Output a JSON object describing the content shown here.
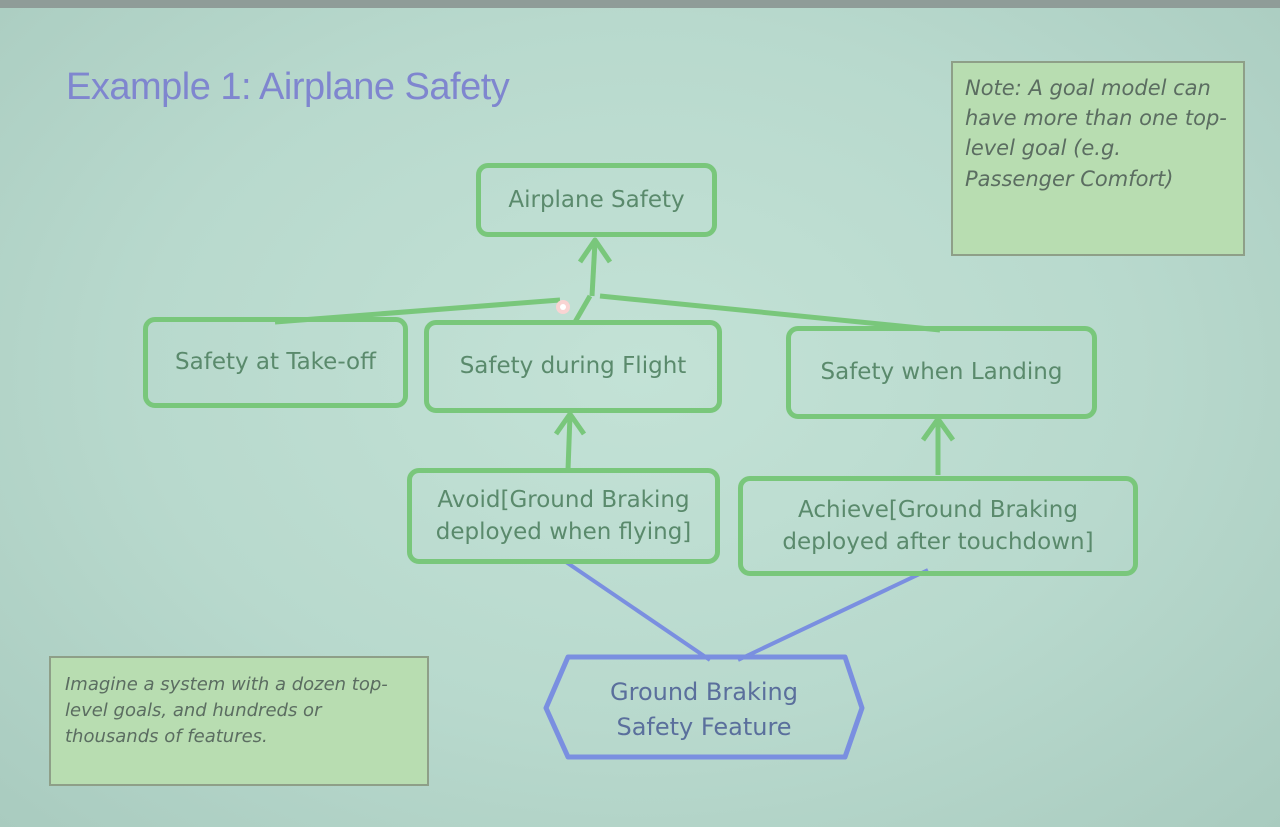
{
  "slide": {
    "title": "Example 1: Airplane Safety"
  },
  "goals": {
    "top": "Airplane Safety",
    "takeoff": "Safety at Take-off",
    "flight": "Safety during Flight",
    "landing": "Safety when Landing",
    "avoid_line1": "Avoid[Ground Braking",
    "avoid_line2": "deployed when flying]",
    "achieve_line1": "Achieve[Ground Braking",
    "achieve_line2": "deployed after touchdown]"
  },
  "feature": {
    "line1": "Ground Braking",
    "line2": "Safety Feature"
  },
  "notes": {
    "top_right": "Note: A goal model can have more than one top-level goal (e.g. Passenger Comfort)",
    "bottom_left": "Imagine a system with a dozen top-level goals, and hundreds or thousands of features."
  },
  "colors": {
    "goal_border": "#79c77b",
    "goal_text": "#5a8a6c",
    "feature_border": "#7a8fe0",
    "note_fill": "#b8ddb1",
    "title": "#7f86cf"
  }
}
